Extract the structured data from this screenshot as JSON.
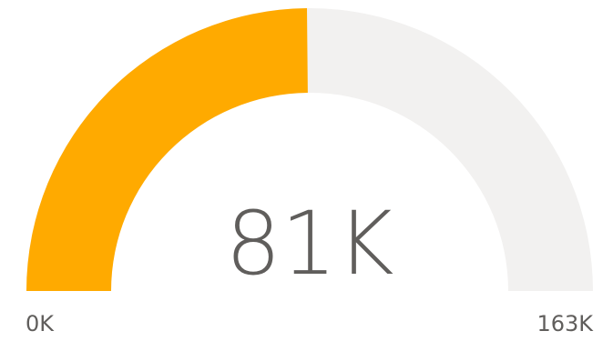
{
  "chart_data": {
    "type": "gauge",
    "value": 81,
    "min": 0,
    "max": 163,
    "value_label": "81K",
    "min_label": "0K",
    "max_label": "163K",
    "fill_color": "#FFAA00",
    "track_color": "#F2F1F0",
    "text_color": "#605E5C"
  }
}
